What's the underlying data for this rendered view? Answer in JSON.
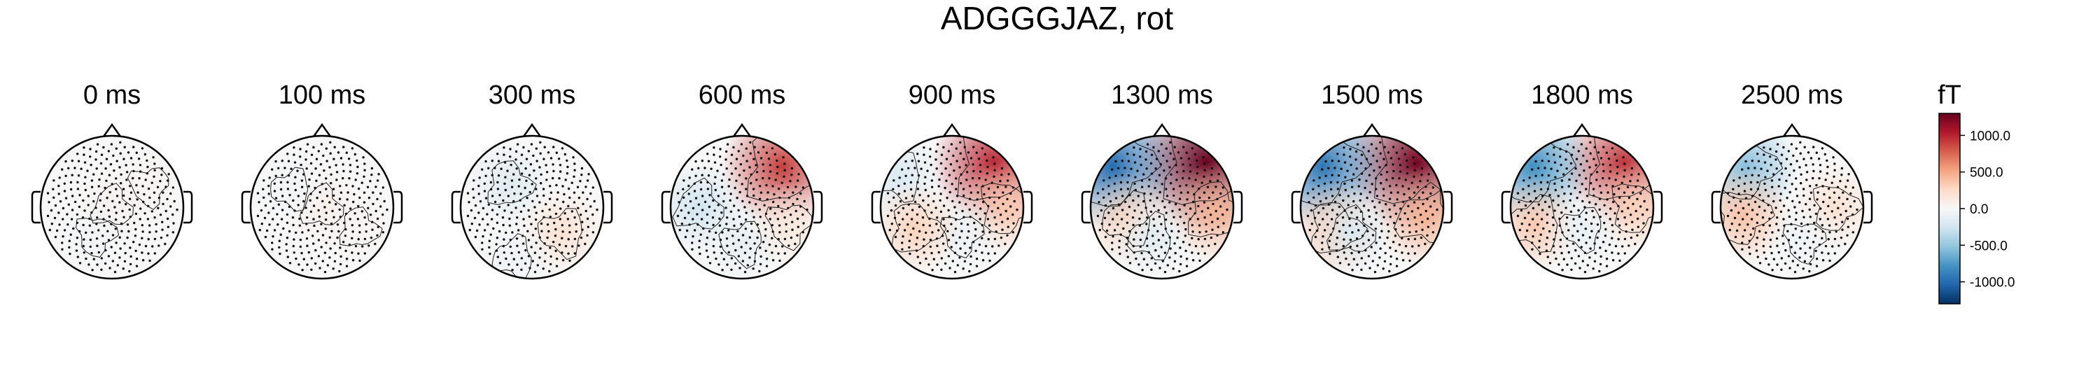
{
  "chart_data": {
    "type": "heatmap",
    "title": "ADGGGJAZ, rot",
    "panels": [
      {
        "label": "0 ms",
        "blobs": [
          {
            "az": 0,
            "r": 0.0,
            "v": 60
          },
          {
            "az": 210,
            "r": 0.45,
            "v": -40
          },
          {
            "az": 60,
            "r": 0.6,
            "v": 30
          }
        ]
      },
      {
        "label": "100 ms",
        "blobs": [
          {
            "az": 0,
            "r": 0.0,
            "v": 80
          },
          {
            "az": 300,
            "r": 0.5,
            "v": -40
          },
          {
            "az": 120,
            "r": 0.6,
            "v": 40
          }
        ]
      },
      {
        "label": "300 ms",
        "blobs": [
          {
            "az": 315,
            "r": 0.45,
            "v": -170
          },
          {
            "az": 130,
            "r": 0.55,
            "v": 200
          },
          {
            "az": 200,
            "r": 0.75,
            "v": -60
          }
        ]
      },
      {
        "label": "600 ms",
        "blobs": [
          {
            "az": 45,
            "r": 0.8,
            "v": 900
          },
          {
            "az": 270,
            "r": 0.6,
            "v": -260
          },
          {
            "az": 180,
            "r": 0.5,
            "v": -120
          },
          {
            "az": 110,
            "r": 0.7,
            "v": 150
          }
        ]
      },
      {
        "label": "900 ms",
        "blobs": [
          {
            "az": 45,
            "r": 0.85,
            "v": 1000
          },
          {
            "az": 300,
            "r": 0.85,
            "v": -200
          },
          {
            "az": 90,
            "r": 0.75,
            "v": 350
          },
          {
            "az": 160,
            "r": 0.4,
            "v": -80
          },
          {
            "az": 240,
            "r": 0.6,
            "v": 300
          }
        ]
      },
      {
        "label": "1300 ms",
        "blobs": [
          {
            "az": 45,
            "r": 0.88,
            "v": 1300
          },
          {
            "az": 310,
            "r": 0.9,
            "v": -1000
          },
          {
            "az": 95,
            "r": 0.75,
            "v": 450
          },
          {
            "az": 250,
            "r": 0.5,
            "v": 300
          },
          {
            "az": 200,
            "r": 0.45,
            "v": -150
          }
        ]
      },
      {
        "label": "1500 ms",
        "blobs": [
          {
            "az": 45,
            "r": 0.88,
            "v": 1250
          },
          {
            "az": 310,
            "r": 0.9,
            "v": -950
          },
          {
            "az": 100,
            "r": 0.75,
            "v": 450
          },
          {
            "az": 240,
            "r": 0.6,
            "v": 350
          },
          {
            "az": 220,
            "r": 0.45,
            "v": -200
          }
        ]
      },
      {
        "label": "1800 ms",
        "blobs": [
          {
            "az": 45,
            "r": 0.85,
            "v": 950
          },
          {
            "az": 310,
            "r": 0.9,
            "v": -800
          },
          {
            "az": 90,
            "r": 0.75,
            "v": 300
          },
          {
            "az": 250,
            "r": 0.7,
            "v": 350
          },
          {
            "az": 180,
            "r": 0.3,
            "v": -100
          }
        ]
      },
      {
        "label": "2500 ms",
        "blobs": [
          {
            "az": 310,
            "r": 0.85,
            "v": -550
          },
          {
            "az": 260,
            "r": 0.7,
            "v": 380
          },
          {
            "az": 90,
            "r": 0.6,
            "v": 200
          },
          {
            "az": 160,
            "r": 0.5,
            "v": -60
          }
        ]
      }
    ],
    "colorbar": {
      "label": "fT",
      "range": [
        -1300,
        1300
      ],
      "ticks": [
        1000.0,
        500.0,
        0.0,
        -500.0,
        -1000.0
      ],
      "tick_labels": [
        "1000.0",
        "500.0",
        "0.0",
        "-500.0",
        "-1000.0"
      ],
      "colormap": "RdBu_r"
    }
  }
}
